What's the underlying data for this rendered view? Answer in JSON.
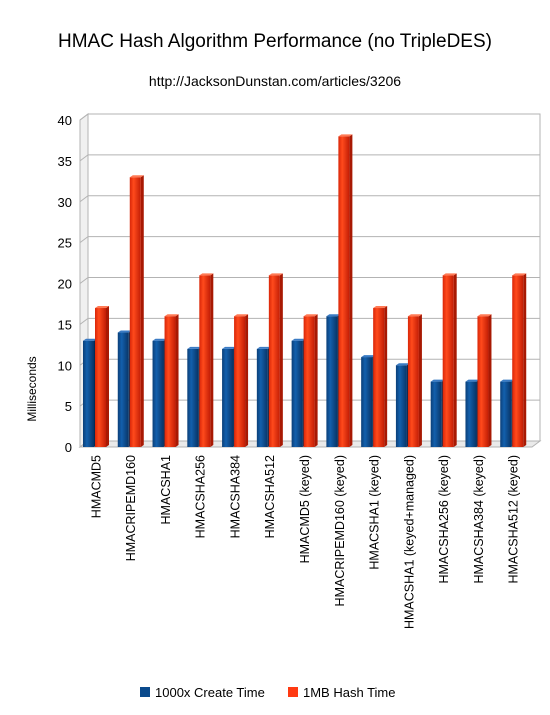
{
  "chart_data": {
    "type": "bar",
    "title": "HMAC Hash Algorithm Performance (no TripleDES)",
    "subtitle": "http://JacksonDunstan.com/articles/3206",
    "xlabel": "",
    "ylabel": "Milliseconds",
    "ylim": [
      0,
      40
    ],
    "yticks": [
      0,
      5,
      10,
      15,
      20,
      25,
      30,
      35,
      40
    ],
    "grid": true,
    "legend_position": "bottom",
    "categories": [
      "HMACMD5",
      "HMACRIPEMD160",
      "HMACSHA1",
      "HMACSHA256",
      "HMACSHA384",
      "HMACSHA512",
      "HMACMD5 (keyed)",
      "HMACRIPEMD160 (keyed)",
      "HMACSHA1 (keyed)",
      "HMACSHA1 (keyed+managed)",
      "HMACSHA256 (keyed)",
      "HMACSHA384 (keyed)",
      "HMACSHA512 (keyed)"
    ],
    "series": [
      {
        "name": "1000x Create Time",
        "color": "#0a4a8c",
        "values": [
          13,
          14,
          13,
          12,
          12,
          12,
          13,
          16,
          11,
          10,
          8,
          8,
          8
        ]
      },
      {
        "name": "1MB Hash Time",
        "color": "#ff3a12",
        "values": [
          17,
          33,
          16,
          21,
          16,
          21,
          16,
          38,
          17,
          16,
          21,
          16,
          21
        ]
      }
    ]
  }
}
